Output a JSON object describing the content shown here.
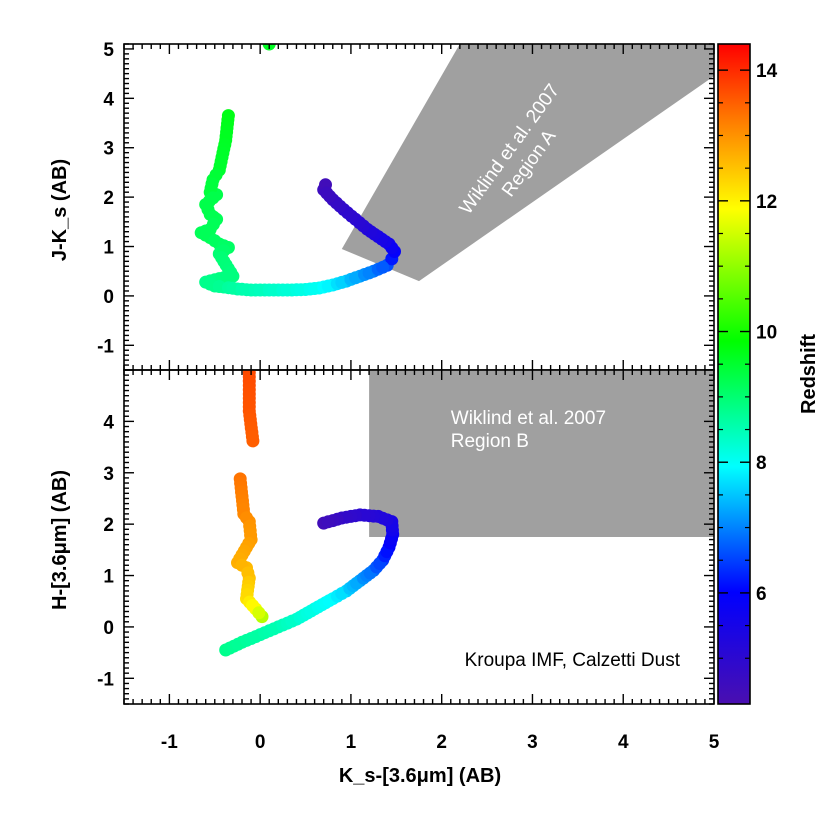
{
  "chart_data": [
    {
      "type": "scatter",
      "panel": "top",
      "xlabel": "K_s-[3.6μm] (AB)",
      "ylabel": "J-K_s (AB)",
      "xlim": [
        -1.5,
        5.0
      ],
      "ylim": [
        -1.5,
        5.1
      ],
      "yticks": [
        -1,
        0,
        1,
        2,
        3,
        4,
        5
      ],
      "xticks": [
        -1,
        0,
        1,
        2,
        3,
        4,
        5
      ],
      "region": {
        "label_line1": "Wiklind et al. 2007",
        "label_line2": "Region A",
        "polygon": [
          [
            0.9,
            0.95
          ],
          [
            2.2,
            5.1
          ],
          [
            5.0,
            5.1
          ],
          [
            5.0,
            4.45
          ],
          [
            1.75,
            0.3
          ]
        ]
      },
      "series": [
        {
          "x": 0.1,
          "y": 5.1,
          "z": 9.6
        },
        {
          "x": -0.35,
          "y": 3.65,
          "z": 9.7
        },
        {
          "x": -0.38,
          "y": 3.15,
          "z": 9.6
        },
        {
          "x": -0.45,
          "y": 2.55,
          "z": 9.5
        },
        {
          "x": -0.52,
          "y": 2.35,
          "z": 9.4
        },
        {
          "x": -0.55,
          "y": 2.1,
          "z": 9.4
        },
        {
          "x": -0.48,
          "y": 2.05,
          "z": 9.3
        },
        {
          "x": -0.6,
          "y": 1.85,
          "z": 9.3
        },
        {
          "x": -0.55,
          "y": 1.65,
          "z": 9.3
        },
        {
          "x": -0.48,
          "y": 1.55,
          "z": 9.2
        },
        {
          "x": -0.55,
          "y": 1.35,
          "z": 9.2
        },
        {
          "x": -0.65,
          "y": 1.28,
          "z": 9.2
        },
        {
          "x": -0.55,
          "y": 1.18,
          "z": 9.2
        },
        {
          "x": -0.45,
          "y": 1.05,
          "z": 9.1
        },
        {
          "x": -0.35,
          "y": 0.98,
          "z": 9.1
        },
        {
          "x": -0.45,
          "y": 0.85,
          "z": 9.0
        },
        {
          "x": -0.3,
          "y": 0.4,
          "z": 8.9
        },
        {
          "x": -0.45,
          "y": 0.35,
          "z": 8.9
        },
        {
          "x": -0.6,
          "y": 0.28,
          "z": 8.8
        },
        {
          "x": -0.5,
          "y": 0.2,
          "z": 8.8
        },
        {
          "x": -0.4,
          "y": 0.18,
          "z": 8.7
        },
        {
          "x": -0.25,
          "y": 0.14,
          "z": 8.6
        },
        {
          "x": -0.1,
          "y": 0.12,
          "z": 8.5
        },
        {
          "x": 0.05,
          "y": 0.12,
          "z": 8.4
        },
        {
          "x": 0.2,
          "y": 0.12,
          "z": 8.3
        },
        {
          "x": 0.35,
          "y": 0.12,
          "z": 8.2
        },
        {
          "x": 0.5,
          "y": 0.13,
          "z": 8.1
        },
        {
          "x": 0.65,
          "y": 0.16,
          "z": 8.0
        },
        {
          "x": 0.8,
          "y": 0.22,
          "z": 7.8
        },
        {
          "x": 0.95,
          "y": 0.3,
          "z": 7.5
        },
        {
          "x": 1.1,
          "y": 0.4,
          "z": 7.2
        },
        {
          "x": 1.25,
          "y": 0.5,
          "z": 6.9
        },
        {
          "x": 1.4,
          "y": 0.62,
          "z": 6.6
        },
        {
          "x": 1.45,
          "y": 0.75,
          "z": 6.2
        },
        {
          "x": 1.48,
          "y": 0.9,
          "z": 5.9
        },
        {
          "x": 1.42,
          "y": 1.05,
          "z": 5.6
        },
        {
          "x": 1.3,
          "y": 1.2,
          "z": 5.4
        },
        {
          "x": 1.18,
          "y": 1.35,
          "z": 5.2
        },
        {
          "x": 1.05,
          "y": 1.55,
          "z": 5.0
        },
        {
          "x": 0.92,
          "y": 1.75,
          "z": 4.9
        },
        {
          "x": 0.8,
          "y": 1.95,
          "z": 4.7
        },
        {
          "x": 0.7,
          "y": 2.15,
          "z": 4.6
        },
        {
          "x": 0.72,
          "y": 2.25,
          "z": 4.5
        }
      ]
    },
    {
      "type": "scatter",
      "panel": "bottom",
      "xlabel": "K_s-[3.6μm] (AB)",
      "ylabel": "H-[3.6μm] (AB)",
      "xlim": [
        -1.5,
        5.0
      ],
      "ylim": [
        -1.5,
        5.0
      ],
      "yticks": [
        -1,
        0,
        1,
        2,
        3,
        4
      ],
      "xticks": [
        -1,
        0,
        1,
        2,
        3,
        4,
        5
      ],
      "region": {
        "label_line1": "Wiklind et al. 2007",
        "label_line2": "Region B",
        "polygon": [
          [
            1.2,
            1.75
          ],
          [
            1.2,
            5.0
          ],
          [
            5.0,
            5.0
          ],
          [
            5.0,
            1.75
          ]
        ]
      },
      "annotation": "Kroupa IMF, Calzetti Dust",
      "series": [
        {
          "x": -0.12,
          "y": 4.95,
          "z": 13.7
        },
        {
          "x": -0.12,
          "y": 4.2,
          "z": 13.6
        },
        {
          "x": -0.08,
          "y": 3.62,
          "z": 13.5
        },
        {
          "x": -0.22,
          "y": 2.88,
          "z": 13.3
        },
        {
          "x": -0.18,
          "y": 2.2,
          "z": 13.1
        },
        {
          "x": -0.12,
          "y": 2.05,
          "z": 13.0
        },
        {
          "x": -0.1,
          "y": 1.7,
          "z": 12.9
        },
        {
          "x": -0.25,
          "y": 1.25,
          "z": 12.7
        },
        {
          "x": -0.15,
          "y": 1.15,
          "z": 12.6
        },
        {
          "x": -0.12,
          "y": 0.95,
          "z": 12.5
        },
        {
          "x": -0.15,
          "y": 0.55,
          "z": 12.2
        },
        {
          "x": -0.05,
          "y": 0.35,
          "z": 11.8
        },
        {
          "x": 0.02,
          "y": 0.2,
          "z": 11.3
        },
        {
          "x": -0.38,
          "y": -0.45,
          "z": 8.8
        },
        {
          "x": -0.2,
          "y": -0.3,
          "z": 8.7
        },
        {
          "x": 0.0,
          "y": -0.15,
          "z": 8.6
        },
        {
          "x": 0.2,
          "y": 0.0,
          "z": 8.5
        },
        {
          "x": 0.4,
          "y": 0.15,
          "z": 8.3
        },
        {
          "x": 0.6,
          "y": 0.35,
          "z": 8.1
        },
        {
          "x": 0.8,
          "y": 0.55,
          "z": 7.9
        },
        {
          "x": 0.95,
          "y": 0.7,
          "z": 7.6
        },
        {
          "x": 1.1,
          "y": 0.9,
          "z": 7.2
        },
        {
          "x": 1.25,
          "y": 1.1,
          "z": 6.8
        },
        {
          "x": 1.35,
          "y": 1.3,
          "z": 6.4
        },
        {
          "x": 1.42,
          "y": 1.55,
          "z": 6.0
        },
        {
          "x": 1.46,
          "y": 1.8,
          "z": 5.7
        },
        {
          "x": 1.45,
          "y": 2.05,
          "z": 5.4
        },
        {
          "x": 1.3,
          "y": 2.15,
          "z": 5.2
        },
        {
          "x": 1.1,
          "y": 2.18,
          "z": 5.0
        },
        {
          "x": 0.9,
          "y": 2.12,
          "z": 4.8
        },
        {
          "x": 0.7,
          "y": 2.02,
          "z": 4.5
        }
      ]
    }
  ],
  "colorbar": {
    "label": "Redshift",
    "range": [
      4.3,
      14.4
    ],
    "ticks": [
      6,
      8,
      10,
      12,
      14
    ],
    "stops": [
      "#4a0fb0",
      "#0000ff",
      "#00ffff",
      "#00ff00",
      "#ffff00",
      "#ff8000",
      "#ff0000"
    ]
  }
}
